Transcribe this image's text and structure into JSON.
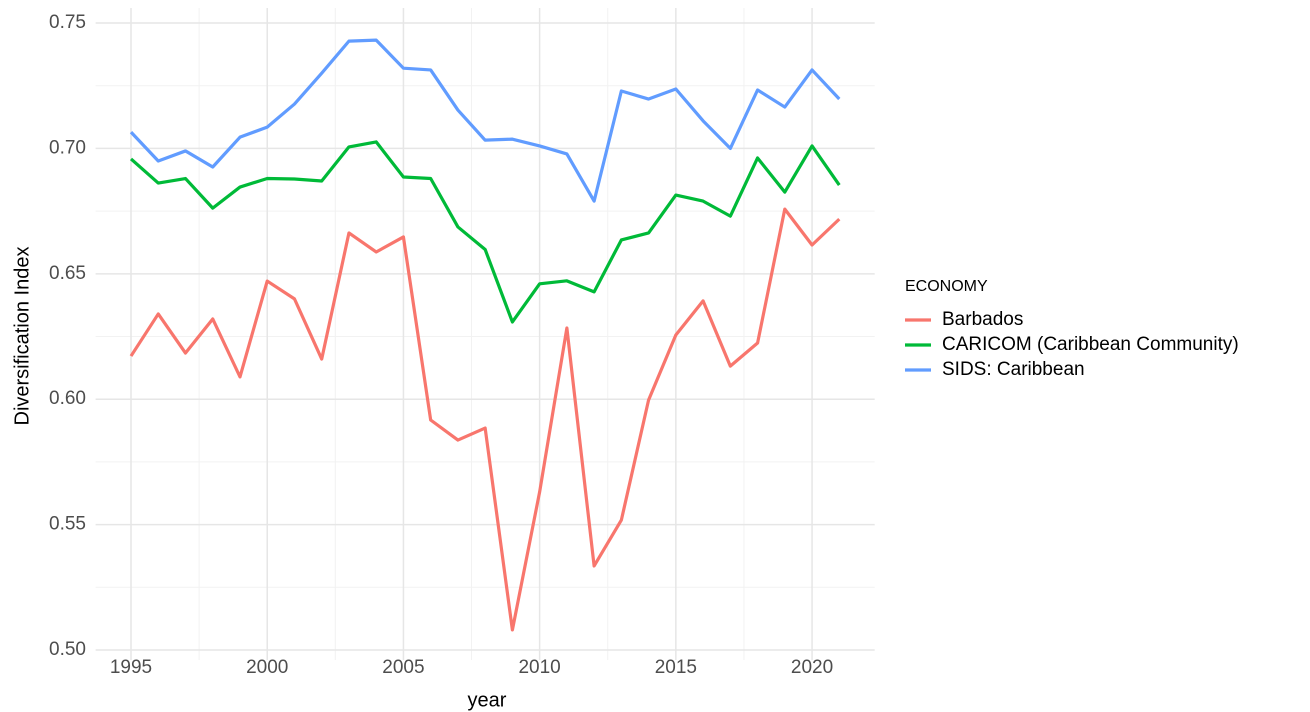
{
  "chart_data": {
    "type": "line",
    "x_label": "year",
    "y_label": "Diversification Index",
    "legend_title": "ECONOMY",
    "legend_position": "right",
    "x": [
      1995,
      1996,
      1997,
      1998,
      1999,
      2000,
      2001,
      2002,
      2003,
      2004,
      2005,
      2006,
      2007,
      2008,
      2009,
      2010,
      2011,
      2012,
      2013,
      2014,
      2015,
      2016,
      2017,
      2018,
      2019,
      2020,
      2021
    ],
    "series": [
      {
        "name": "Barbados",
        "color": "#F8766D",
        "values": [
          0.6172,
          0.634,
          0.6184,
          0.632,
          0.6089,
          0.6471,
          0.64,
          0.616,
          0.6663,
          0.6587,
          0.6647,
          0.5917,
          0.5837,
          0.5885,
          0.508,
          0.563,
          0.6284,
          0.5335,
          0.5518,
          0.5997,
          0.6256,
          0.6392,
          0.6132,
          0.6224,
          0.6758,
          0.6615,
          0.6718
        ]
      },
      {
        "name": "CARICOM (Caribbean Community)",
        "color": "#00BA38",
        "values": [
          0.6958,
          0.6862,
          0.688,
          0.6762,
          0.6846,
          0.688,
          0.6878,
          0.687,
          0.7006,
          0.7026,
          0.6886,
          0.688,
          0.6687,
          0.6597,
          0.6308,
          0.646,
          0.6472,
          0.6428,
          0.6635,
          0.6663,
          0.6814,
          0.679,
          0.673,
          0.6962,
          0.6826,
          0.701,
          0.6854
        ]
      },
      {
        "name": "SIDS: Caribbean",
        "color": "#619CFF",
        "values": [
          0.7065,
          0.695,
          0.699,
          0.6926,
          0.7045,
          0.7085,
          0.7177,
          0.73,
          0.7428,
          0.7432,
          0.732,
          0.7313,
          0.7153,
          0.7033,
          0.7037,
          0.701,
          0.6978,
          0.679,
          0.7229,
          0.7197,
          0.7237,
          0.711,
          0.7,
          0.7233,
          0.7165,
          0.7313,
          0.7197
        ]
      }
    ],
    "xlim": [
      1993.7,
      2022.3
    ],
    "xticks": [
      1995,
      2000,
      2005,
      2010,
      2015,
      2020
    ],
    "ylim": [
      0.496,
      0.756
    ],
    "yticks": [
      {
        "value": 0.5,
        "label": "0.50"
      },
      0.55,
      {
        "value": 0.6,
        "label": "0.60"
      },
      0.65,
      {
        "value": 0.7,
        "label": "0.70"
      },
      0.75
    ],
    "grid": true
  }
}
